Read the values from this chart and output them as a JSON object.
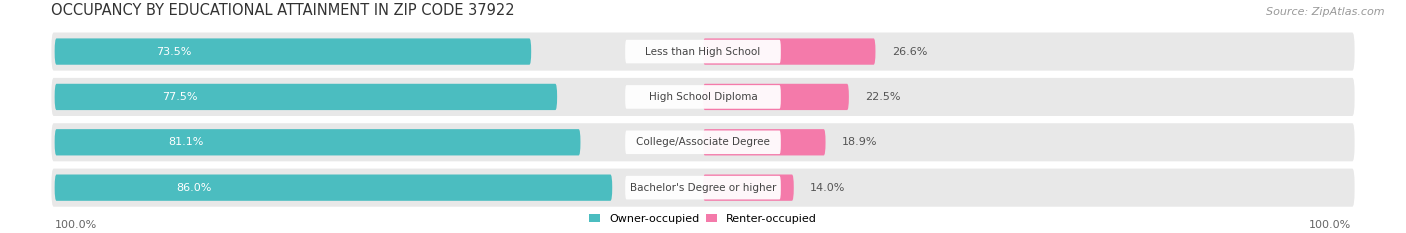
{
  "title": "OCCUPANCY BY EDUCATIONAL ATTAINMENT IN ZIP CODE 37922",
  "source": "Source: ZipAtlas.com",
  "categories": [
    "Less than High School",
    "High School Diploma",
    "College/Associate Degree",
    "Bachelor's Degree or higher"
  ],
  "owner_values": [
    73.5,
    77.5,
    81.1,
    86.0
  ],
  "renter_values": [
    26.6,
    22.5,
    18.9,
    14.0
  ],
  "owner_color": "#4bbdc0",
  "renter_color": "#f47aaa",
  "row_bg_color": "#e8e8e8",
  "title_fontsize": 10.5,
  "source_fontsize": 8,
  "bar_label_fontsize": 8,
  "category_fontsize": 7.5,
  "legend_fontsize": 8,
  "axis_label_fontsize": 8,
  "fig_bg_color": "#ffffff",
  "x_axis_labels": [
    "100.0%",
    "100.0%"
  ]
}
